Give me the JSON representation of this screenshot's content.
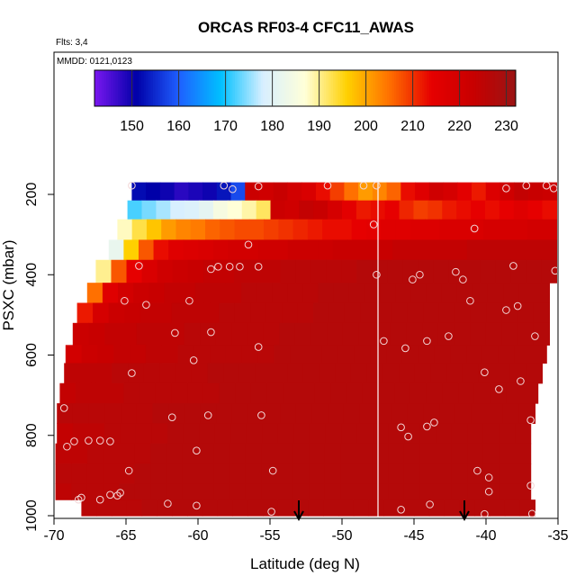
{
  "chart_data": {
    "type": "heatmap",
    "title": "ORCAS RF03-4 CFC11_AWAS",
    "subtitle_flights": "Flts: 3,4",
    "subtitle_dates": "MMDD: 0121,0123",
    "xlabel": "Latitude (deg N)",
    "ylabel": "PSXC (mbar)",
    "xlim": [
      -70,
      -35
    ],
    "ylim": [
      1000,
      100
    ],
    "x_ticks": [
      "-70",
      "-65",
      "-60",
      "-55",
      "-50",
      "-45",
      "-40",
      "-35"
    ],
    "y_ticks": [
      "200",
      "400",
      "600",
      "800",
      "1000"
    ],
    "colorbar": {
      "range": [
        142,
        232
      ],
      "ticks": [
        "150",
        "160",
        "170",
        "180",
        "190",
        "200",
        "210",
        "220",
        "230"
      ],
      "colors": [
        "#7a17f0",
        "#0000a8",
        "#1f5fff",
        "#00c0ff",
        "#d8efff",
        "#ffffd8",
        "#ffd000",
        "#ff7000",
        "#e60000",
        "#c80000",
        "#9a1414"
      ]
    },
    "divider_lat": -47.5,
    "arrows_lat": [
      -53,
      -41.5
    ],
    "rows": [
      {
        "p_top": 170,
        "p_bot": 215,
        "lat_min": -64.6,
        "lat_max": -35.1,
        "values": [
          152,
          151,
          150,
          148,
          149,
          150,
          153,
          158,
          222,
          221,
          223,
          220,
          218,
          213,
          209,
          205,
          201,
          203,
          206,
          213,
          216,
          221,
          219,
          215,
          212,
          217,
          221,
          224,
          223,
          222
        ]
      },
      {
        "p_top": 215,
        "p_bot": 262,
        "lat_min": -64.9,
        "lat_max": -35.1,
        "values": [
          172,
          174,
          176,
          178,
          179,
          181,
          185,
          187,
          189,
          192,
          222,
          221,
          224,
          223,
          219,
          215,
          212,
          213,
          214,
          211,
          209,
          210,
          212,
          213,
          214,
          213,
          214,
          216,
          214,
          213
        ]
      },
      {
        "p_top": 262,
        "p_bot": 313,
        "lat_min": -65.6,
        "lat_max": -35.1,
        "values": [
          188,
          193,
          197,
          201,
          203,
          204,
          206,
          207,
          208,
          208,
          209,
          210,
          211,
          212,
          213,
          213,
          214,
          215,
          216,
          216,
          217,
          217,
          218,
          218,
          218,
          219,
          219,
          219,
          220,
          220
        ]
      },
      {
        "p_top": 313,
        "p_bot": 363,
        "lat_min": -66.2,
        "lat_max": -35.1,
        "values": [
          182,
          196,
          207,
          213,
          216,
          217,
          218,
          219,
          220,
          220,
          221,
          221,
          222,
          222,
          222,
          223,
          223,
          223,
          223,
          224,
          224,
          224,
          224,
          224,
          225,
          225,
          225,
          225,
          225,
          225
        ]
      },
      {
        "p_top": 363,
        "p_bot": 420,
        "lat_min": -67.1,
        "lat_max": -35.1,
        "values": [
          190,
          207,
          214,
          218,
          221,
          222,
          223,
          224,
          224,
          225,
          225,
          225,
          226,
          226,
          226,
          226,
          226,
          227,
          227,
          227,
          227,
          227,
          227,
          227,
          227,
          227,
          227,
          227,
          227,
          227
        ]
      },
      {
        "p_top": 420,
        "p_bot": 470,
        "lat_min": -67.7,
        "lat_max": -35.6,
        "values": [
          205,
          216,
          220,
          222,
          223,
          224,
          224,
          225,
          225,
          225,
          226,
          226,
          226,
          226,
          226,
          227,
          227,
          227,
          227,
          227,
          227,
          227,
          227,
          227,
          227,
          227,
          227,
          227,
          227,
          227
        ]
      },
      {
        "p_top": 470,
        "p_bot": 520,
        "lat_min": -68.4,
        "lat_max": -35.6,
        "values": [
          212,
          219,
          222,
          223,
          224,
          224,
          225,
          225,
          225,
          226,
          226,
          226,
          226,
          226,
          226,
          227,
          227,
          227,
          227,
          227,
          227,
          227,
          227,
          227,
          227,
          227,
          227,
          227,
          227,
          227
        ]
      },
      {
        "p_top": 520,
        "p_bot": 575,
        "lat_min": -68.7,
        "lat_max": -35.6,
        "values": [
          222,
          223,
          224,
          224,
          225,
          225,
          225,
          226,
          226,
          226,
          226,
          226,
          226,
          227,
          227,
          227,
          227,
          227,
          227,
          227,
          227,
          227,
          227,
          227,
          227,
          227,
          227,
          227,
          227,
          227
        ]
      },
      {
        "p_top": 575,
        "p_bot": 620,
        "lat_min": -69.2,
        "lat_max": -35.8,
        "values": [
          220,
          222,
          223,
          224,
          224,
          225,
          225,
          226,
          226,
          226,
          226,
          226,
          226,
          227,
          227,
          227,
          227,
          227,
          227,
          227,
          227,
          227,
          227,
          227,
          227,
          227,
          227,
          227,
          227,
          227
        ]
      },
      {
        "p_top": 620,
        "p_bot": 670,
        "lat_min": -69.3,
        "lat_max": -36.1,
        "values": [
          225,
          225,
          225,
          226,
          226,
          226,
          226,
          226,
          226,
          227,
          227,
          227,
          227,
          227,
          227,
          227,
          227,
          227,
          227,
          227,
          227,
          227,
          227,
          227,
          227,
          227,
          227,
          227,
          227,
          227
        ]
      },
      {
        "p_top": 670,
        "p_bot": 720,
        "lat_min": -69.6,
        "lat_max": -36.4,
        "values": [
          224,
          225,
          225,
          225,
          226,
          226,
          226,
          226,
          226,
          226,
          227,
          227,
          227,
          227,
          227,
          227,
          227,
          227,
          227,
          227,
          227,
          227,
          227,
          227,
          227,
          227,
          227,
          227,
          227,
          227
        ]
      },
      {
        "p_top": 720,
        "p_bot": 770,
        "lat_min": -69.8,
        "lat_max": -36.6,
        "values": [
          226,
          226,
          226,
          226,
          226,
          226,
          227,
          227,
          227,
          227,
          227,
          227,
          227,
          227,
          227,
          227,
          227,
          227,
          227,
          227,
          227,
          227,
          227,
          227,
          227,
          227,
          227,
          227,
          227,
          227
        ]
      },
      {
        "p_top": 770,
        "p_bot": 820,
        "lat_min": -69.8,
        "lat_max": -36.9,
        "values": [
          224,
          225,
          225,
          226,
          226,
          226,
          226,
          227,
          227,
          227,
          227,
          227,
          227,
          227,
          227,
          227,
          227,
          227,
          227,
          227,
          227,
          227,
          227,
          227,
          227,
          227,
          227,
          227,
          227,
          227
        ]
      },
      {
        "p_top": 820,
        "p_bot": 870,
        "lat_min": -69.9,
        "lat_max": -36.9,
        "values": [
          225,
          225,
          226,
          226,
          226,
          226,
          227,
          227,
          227,
          227,
          227,
          227,
          227,
          227,
          227,
          227,
          227,
          227,
          227,
          227,
          227,
          227,
          227,
          227,
          227,
          227,
          227,
          227,
          227,
          227
        ]
      },
      {
        "p_top": 870,
        "p_bot": 920,
        "lat_min": -69.9,
        "lat_max": -36.9,
        "values": [
          226,
          226,
          226,
          226,
          226,
          227,
          227,
          227,
          227,
          227,
          227,
          227,
          227,
          227,
          227,
          227,
          227,
          227,
          227,
          227,
          227,
          227,
          227,
          227,
          227,
          227,
          227,
          227,
          227,
          227
        ]
      },
      {
        "p_top": 920,
        "p_bot": 960,
        "lat_min": -69.9,
        "lat_max": -36.9,
        "values": [
          225,
          226,
          226,
          226,
          227,
          227,
          227,
          227,
          227,
          227,
          227,
          227,
          227,
          227,
          227,
          227,
          227,
          227,
          227,
          227,
          227,
          227,
          227,
          227,
          227,
          227,
          227,
          227,
          227,
          227
        ]
      },
      {
        "p_top": 960,
        "p_bot": 1000,
        "lat_min": -68.1,
        "lat_max": -36.6,
        "values": [
          226,
          226,
          226,
          226,
          227,
          227,
          227,
          227,
          227,
          227,
          227,
          227,
          227,
          227,
          227,
          227,
          227,
          227,
          227,
          227,
          227,
          227,
          227,
          227,
          227,
          227,
          227,
          227,
          227,
          227
        ]
      }
    ],
    "points": [
      [
        -64.6,
        178
      ],
      [
        -58.2,
        178
      ],
      [
        -57.6,
        187
      ],
      [
        -55.8,
        180
      ],
      [
        -51.0,
        178
      ],
      [
        -48.5,
        178
      ],
      [
        -47.6,
        178
      ],
      [
        -38.6,
        185
      ],
      [
        -37.2,
        178
      ],
      [
        -35.8,
        178
      ],
      [
        -35.3,
        185
      ],
      [
        -47.8,
        275
      ],
      [
        -40.8,
        285
      ],
      [
        -56.5,
        325
      ],
      [
        -64.1,
        378
      ],
      [
        -59.1,
        386
      ],
      [
        -58.6,
        380
      ],
      [
        -57.8,
        380
      ],
      [
        -57.1,
        380
      ],
      [
        -55.8,
        380
      ],
      [
        -47.6,
        400
      ],
      [
        -44.6,
        400
      ],
      [
        -45.1,
        412
      ],
      [
        -42.1,
        393
      ],
      [
        -41.6,
        412
      ],
      [
        -38.1,
        378
      ],
      [
        -35.2,
        390
      ],
      [
        -65.1,
        465
      ],
      [
        -63.6,
        475
      ],
      [
        -60.6,
        465
      ],
      [
        -41.1,
        465
      ],
      [
        -38.6,
        488
      ],
      [
        -37.8,
        478
      ],
      [
        -61.6,
        545
      ],
      [
        -59.1,
        543
      ],
      [
        -55.8,
        580
      ],
      [
        -47.1,
        565
      ],
      [
        -45.6,
        583
      ],
      [
        -44.1,
        565
      ],
      [
        -42.6,
        553
      ],
      [
        -36.6,
        553
      ],
      [
        -64.6,
        645
      ],
      [
        -60.3,
        613
      ],
      [
        -40.1,
        643
      ],
      [
        -37.6,
        665
      ],
      [
        -39.1,
        685
      ],
      [
        -69.3,
        732
      ],
      [
        -61.8,
        755
      ],
      [
        -59.3,
        750
      ],
      [
        -55.6,
        750
      ],
      [
        -45.9,
        780
      ],
      [
        -45.4,
        803
      ],
      [
        -44.1,
        778
      ],
      [
        -43.6,
        768
      ],
      [
        -36.9,
        762
      ],
      [
        -68.6,
        815
      ],
      [
        -69.1,
        828
      ],
      [
        -67.6,
        813
      ],
      [
        -66.8,
        813
      ],
      [
        -66.1,
        815
      ],
      [
        -60.1,
        838
      ],
      [
        -64.8,
        888
      ],
      [
        -54.8,
        888
      ],
      [
        -40.6,
        888
      ],
      [
        -39.8,
        905
      ],
      [
        -68.1,
        955
      ],
      [
        -68.3,
        960
      ],
      [
        -66.8,
        960
      ],
      [
        -66.1,
        948
      ],
      [
        -65.6,
        950
      ],
      [
        -65.4,
        943
      ],
      [
        -62.1,
        970
      ],
      [
        -60.1,
        975
      ],
      [
        -54.9,
        990
      ],
      [
        -45.9,
        985
      ],
      [
        -43.9,
        972
      ],
      [
        -39.8,
        940
      ],
      [
        -40.1,
        996
      ],
      [
        -36.9,
        925
      ],
      [
        -36.8,
        995
      ]
    ]
  }
}
